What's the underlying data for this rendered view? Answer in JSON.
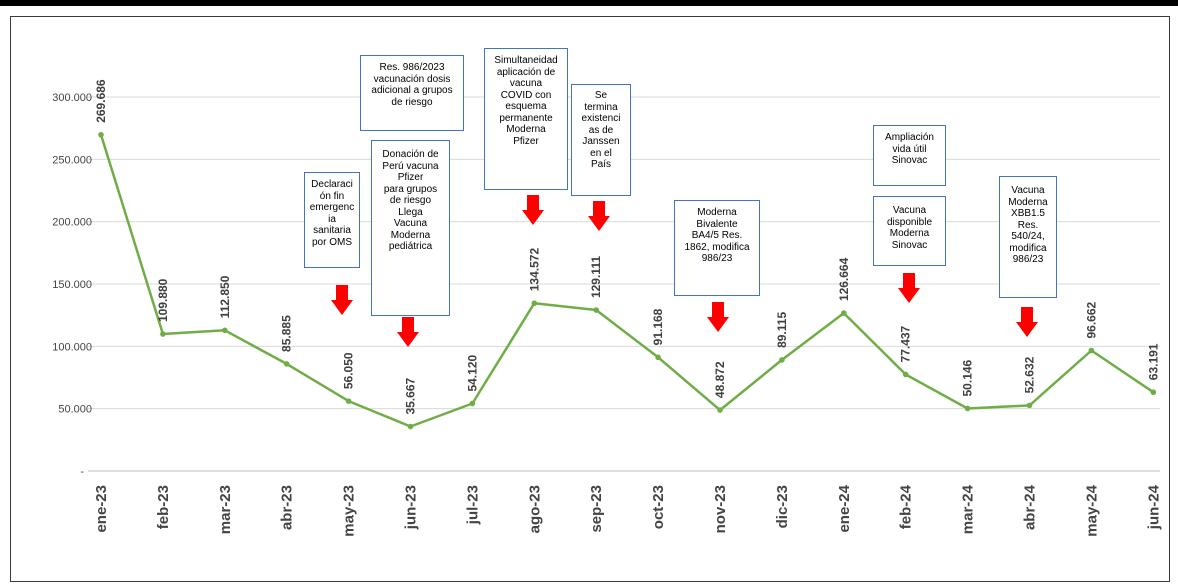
{
  "chart_data": {
    "type": "line",
    "categories": [
      "ene-23",
      "feb-23",
      "mar-23",
      "abr-23",
      "may-23",
      "jun-23",
      "jul-23",
      "ago-23",
      "sep-23",
      "oct-23",
      "nov-23",
      "dic-23",
      "ene-24",
      "feb-24",
      "mar-24",
      "abr-24",
      "may-24",
      "jun-24"
    ],
    "values": [
      269686,
      109880,
      112850,
      85885,
      56050,
      35667,
      54120,
      134572,
      129111,
      91168,
      48872,
      89115,
      126664,
      77437,
      50146,
      52632,
      96662,
      63191
    ],
    "value_labels": [
      "269.686",
      "109.880",
      "112.850",
      "85.885",
      "56.050",
      "35.667",
      "54.120",
      "134.572",
      "129.111",
      "91.168",
      "48.872",
      "89.115",
      "126.664",
      "77.437",
      "50.146",
      "52.632",
      "96.662",
      "63.191"
    ],
    "ylim": [
      0,
      300000
    ],
    "yticks": [
      {
        "value": 0,
        "label": "-"
      },
      {
        "value": 50000,
        "label": "50.000"
      },
      {
        "value": 100000,
        "label": "100.000"
      },
      {
        "value": 150000,
        "label": "150.000"
      },
      {
        "value": 200000,
        "label": "200.000"
      },
      {
        "value": 250000,
        "label": "250.000"
      },
      {
        "value": 300000,
        "label": "300.000"
      }
    ],
    "grid": true,
    "line_color": "#70ad47",
    "annotations": [
      {
        "text": "Res. 986/2023\nvacunación dosis\nadicional  a grupos\nde riesgo"
      },
      {
        "text": "Simultaneidad\naplicación de\nvacuna\nCOVID con\nesquema\npermanente\nModerna\nPfizer"
      },
      {
        "text": "Se\ntermina\nexistenci\nas de\nJanssen\nen el\nPaís"
      },
      {
        "text": "Donación de\nPerú vacuna\nPfizer\npara grupos\nde riesgo\nLlega\nVacuna\nModerna\npediátrica"
      },
      {
        "text": "Declaraci\nón fin\nemergenc\nia\nsanitaria\npor OMS"
      },
      {
        "text": "Ampliación\nvida útil\nSinovac"
      },
      {
        "text": "Vacuna\ndisponible\nModerna\nSinovac"
      },
      {
        "text": "Moderna\nBivalente\nBA4/5 Res.\n1862, modifica\n986/23"
      },
      {
        "text": "Vacuna\nModerna\nXBB1.5\nRes.\n540/24,\nmodifica\n986/23"
      }
    ]
  }
}
